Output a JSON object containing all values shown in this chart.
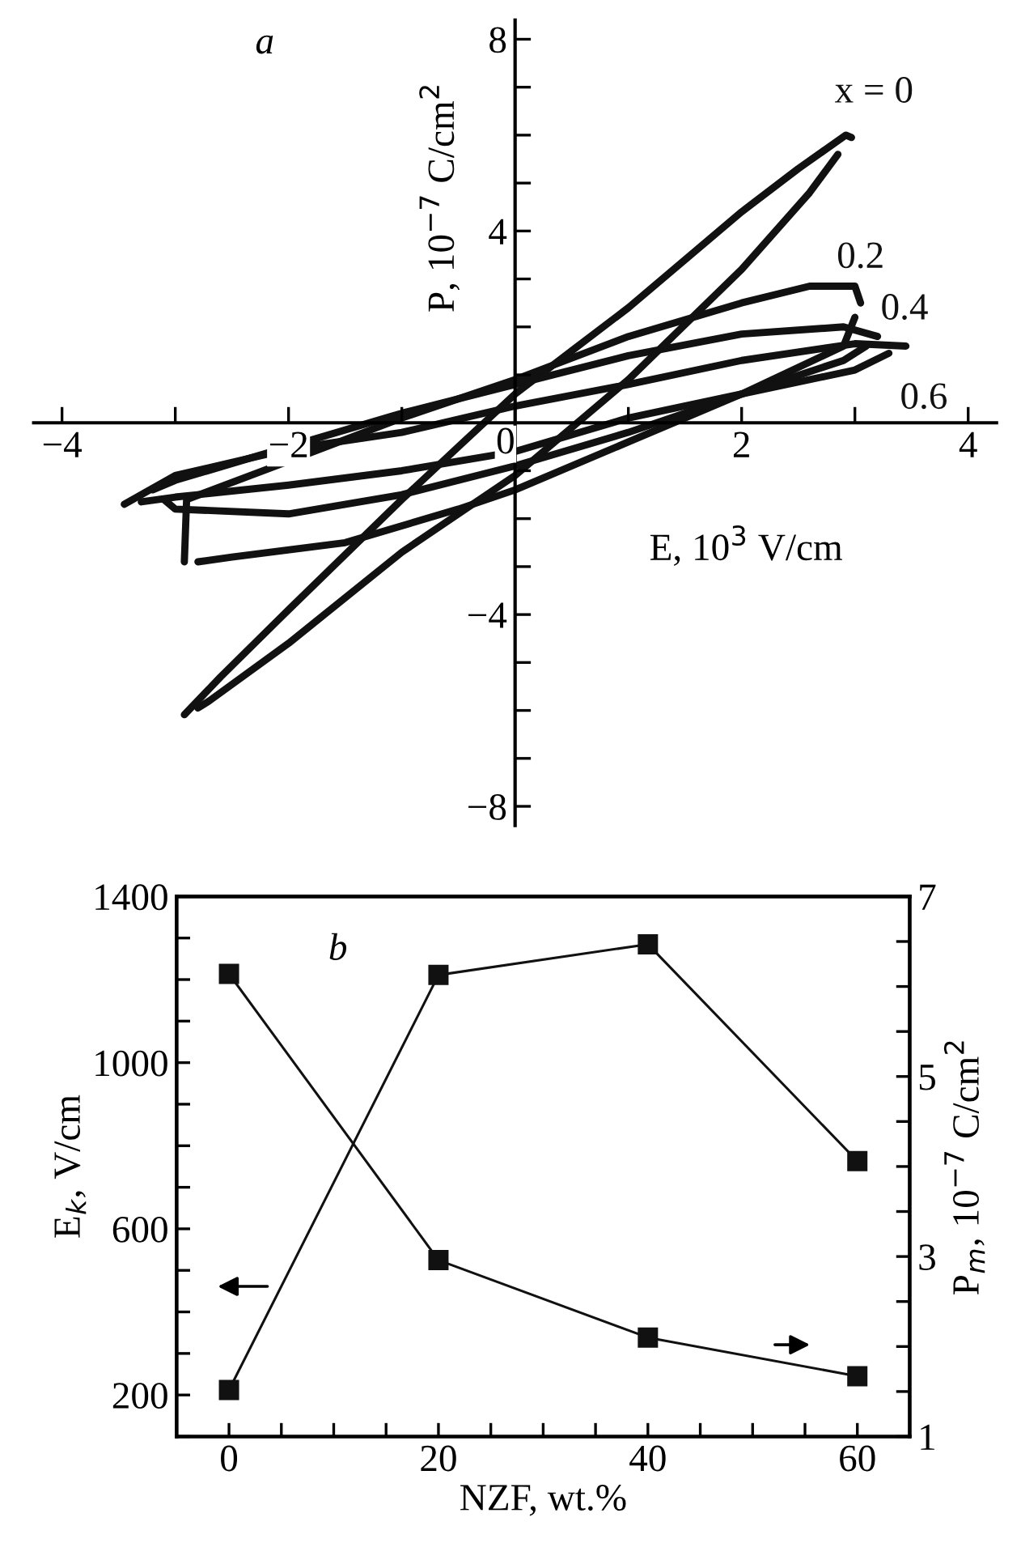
{
  "chart_data": [
    {
      "type": "line",
      "xlabel": "E, 10$^{3}$ V/cm",
      "ylabel": "P, 10$^{−7}$ C/cm$^{2}$",
      "annotations": [
        "a"
      ],
      "xlim": [
        -4.25,
        4.25
      ],
      "ylim": [
        -8.4,
        8.4
      ],
      "xticks": [
        {
          "value": -4,
          "label": "−4"
        },
        {
          "value": -3,
          "label": null
        },
        {
          "value": -2,
          "label": "−2"
        },
        {
          "value": -1,
          "label": null
        },
        0,
        {
          "value": 1,
          "label": null
        },
        2,
        {
          "value": 3,
          "label": null
        },
        4
      ],
      "yticks": [
        {
          "value": -8,
          "label": "−8"
        },
        {
          "value": -7,
          "label": null
        },
        {
          "value": -6,
          "label": null
        },
        {
          "value": -5,
          "label": null
        },
        {
          "value": -4,
          "label": "−4"
        },
        {
          "value": -3,
          "label": null
        },
        {
          "value": -2,
          "label": null
        },
        {
          "value": -1,
          "label": null
        },
        {
          "value": 1,
          "label": null
        },
        {
          "value": 2,
          "label": null
        },
        {
          "value": 3,
          "label": null
        },
        4,
        {
          "value": 5,
          "label": null
        },
        {
          "value": 6,
          "label": null
        },
        {
          "value": 7,
          "label": null
        },
        8
      ],
      "grid": false,
      "legend": false,
      "marker": "none",
      "line_style": "solid",
      "series": [
        {
          "name": "x = 0",
          "color": "#111111",
          "x": [
            2.97,
            2.92,
            2.5,
            2.0,
            1.0,
            0.5,
            0.0,
            -0.5,
            -1.0,
            -2.0,
            -2.6,
            -2.92
          ],
          "values": [
            5.95,
            6.0,
            5.3,
            4.4,
            2.4,
            1.5,
            0.6,
            -0.5,
            -1.6,
            -3.9,
            -5.3,
            -6.09
          ]
        },
        {
          "color": "#111111",
          "x": [
            -2.8,
            -2.7,
            -2.0,
            -1.0,
            0.0,
            0.5,
            1.0,
            2.0,
            2.6,
            2.85
          ],
          "values": [
            -5.95,
            -5.8,
            -4.6,
            -2.7,
            -1.1,
            -0.1,
            0.9,
            3.2,
            4.8,
            5.6
          ]
        },
        {
          "name": "0.2",
          "color": "#111111",
          "x": [
            3.05,
            3.0,
            2.6,
            2.0,
            1.0,
            0.0,
            -1.0,
            -2.0,
            -2.9,
            -2.92
          ],
          "values": [
            2.5,
            2.85,
            2.85,
            2.5,
            1.8,
            0.9,
            0.1,
            -0.8,
            -1.6,
            -2.9
          ]
        },
        {
          "color": "#111111",
          "x": [
            -2.8,
            -2.5,
            -1.5,
            -0.5,
            0.0,
            1.0,
            2.0,
            2.9,
            3.0
          ],
          "values": [
            -2.9,
            -2.8,
            -2.5,
            -1.8,
            -1.4,
            -0.4,
            0.6,
            1.6,
            2.2
          ]
        },
        {
          "name": "0.4",
          "color": "#111111",
          "x": [
            3.2,
            2.9,
            2.0,
            1.0,
            0.0,
            -1.0,
            -2.0,
            -3.0,
            -3.2
          ],
          "values": [
            1.8,
            2.0,
            1.85,
            1.4,
            0.8,
            0.2,
            -0.5,
            -1.2,
            -1.4
          ]
        },
        {
          "color": "#111111",
          "x": [
            -3.1,
            -3.0,
            -2.0,
            -1.0,
            0.0,
            1.0,
            2.0,
            2.9,
            3.1
          ],
          "values": [
            -1.6,
            -1.8,
            -1.9,
            -1.5,
            -0.9,
            -0.2,
            0.6,
            1.3,
            1.6
          ]
        },
        {
          "name": "0.6",
          "color": "#111111",
          "x": [
            3.45,
            3.0,
            2.0,
            1.0,
            0.0,
            -1.0,
            -2.0,
            -3.0,
            -3.45
          ],
          "values": [
            1.6,
            1.65,
            1.3,
            0.8,
            0.35,
            -0.2,
            -0.55,
            -1.1,
            -1.7
          ]
        },
        {
          "color": "#111111",
          "x": [
            -3.3,
            -3.0,
            -2.0,
            -1.0,
            0.0,
            1.0,
            2.0,
            3.0,
            3.3
          ],
          "values": [
            -1.65,
            -1.55,
            -1.3,
            -1.0,
            -0.6,
            0.1,
            0.6,
            1.1,
            1.45
          ]
        }
      ]
    },
    {
      "type": "line",
      "xlabel": "NZF, wt.%",
      "ylabel": "E$_{k}$, V/cm",
      "y2label": "P$_{m}$, 10$^{−7}$ C/cm$^{2}$",
      "annotations": [
        "b"
      ],
      "x": [
        0,
        20,
        40,
        60
      ],
      "xlim": [
        -5,
        65
      ],
      "xticks": [
        0,
        {
          "value": 5,
          "label": null
        },
        {
          "value": 10,
          "label": null
        },
        {
          "value": 15,
          "label": null
        },
        20,
        {
          "value": 25,
          "label": null
        },
        {
          "value": 30,
          "label": null
        },
        {
          "value": 35,
          "label": null
        },
        40,
        {
          "value": 45,
          "label": null
        },
        {
          "value": 50,
          "label": null
        },
        {
          "value": 55,
          "label": null
        },
        60
      ],
      "ylim": [
        100,
        1400
      ],
      "yticks": [
        {
          "value": 100,
          "label": null
        },
        200,
        {
          "value": 300,
          "label": null
        },
        {
          "value": 400,
          "label": null
        },
        {
          "value": 500,
          "label": null
        },
        600,
        {
          "value": 700,
          "label": null
        },
        {
          "value": 800,
          "label": null
        },
        {
          "value": 900,
          "label": null
        },
        1000,
        {
          "value": 1100,
          "label": null
        },
        {
          "value": 1200,
          "label": null
        },
        {
          "value": 1300,
          "label": null
        },
        1400
      ],
      "y2lim": [
        1,
        7
      ],
      "y2ticks": [
        1,
        {
          "value": 1.5,
          "label": null
        },
        {
          "value": 2,
          "label": null
        },
        {
          "value": 2.5,
          "label": null
        },
        3,
        {
          "value": 3.5,
          "label": null
        },
        {
          "value": 4,
          "label": null
        },
        {
          "value": 4.5,
          "label": null
        },
        5,
        {
          "value": 5.5,
          "label": null
        },
        {
          "value": 6,
          "label": null
        },
        {
          "value": 6.5,
          "label": null
        },
        7
      ],
      "grid": false,
      "legend": false,
      "marker": "square",
      "line_style": "solid",
      "series": [
        {
          "color": "#111111",
          "values": [
            212,
            1211,
            1285,
            763
          ]
        },
        {
          "color": "#111111",
          "axis": "y2",
          "values": [
            6.14,
            2.96,
            2.1,
            1.67
          ]
        }
      ]
    }
  ]
}
